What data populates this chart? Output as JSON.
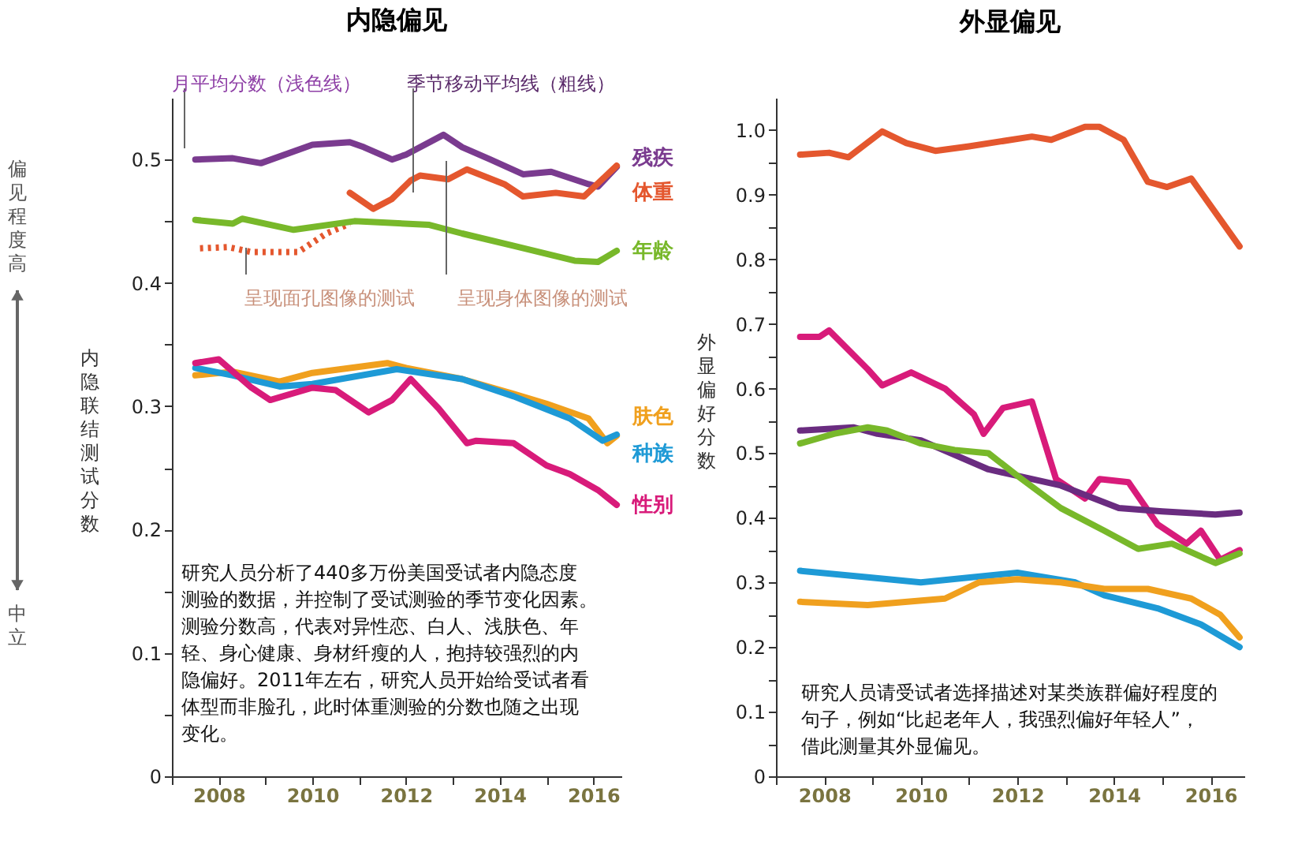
{
  "chart_data": [
    {
      "type": "line",
      "title": "内隐偏见",
      "ylabel": "内隐联结测试分数",
      "xlim": [
        2007,
        2016.6
      ],
      "ylim": [
        0,
        0.55
      ],
      "xticks": [
        {
          "value": 2007,
          "label": null
        },
        2008,
        {
          "value": 2009,
          "label": null
        },
        2010,
        {
          "value": 2011,
          "label": null
        },
        2012,
        {
          "value": 2013,
          "label": null
        },
        2014,
        {
          "value": 2015,
          "label": null
        },
        2016
      ],
      "yticks": [
        0,
        {
          "value": 0.05,
          "label": null
        },
        0.1,
        {
          "value": 0.15,
          "label": null
        },
        0.2,
        {
          "value": 0.25,
          "label": null
        },
        0.3,
        {
          "value": 0.35,
          "label": null
        },
        0.4,
        {
          "value": 0.45,
          "label": null
        },
        0.5
      ],
      "series": [
        {
          "name": "残疾",
          "color": "#7a3b8f",
          "x": [
            2007.5,
            2008.3,
            2008.9,
            2010.0,
            2010.8,
            2011.1,
            2011.7,
            2012.0,
            2012.8,
            2013.2,
            2013.8,
            2014.5,
            2015.1,
            2015.9,
            2016.1,
            2016.5
          ],
          "values": [
            0.5,
            0.501,
            0.497,
            0.512,
            0.514,
            0.51,
            0.5,
            0.504,
            0.52,
            0.51,
            0.5,
            0.488,
            0.49,
            0.48,
            0.478,
            0.494
          ]
        },
        {
          "name": "体重",
          "color": "#e4572e",
          "x": [
            2010.8,
            2011.3,
            2011.7,
            2012.1,
            2012.3,
            2012.9,
            2013.3,
            2014.1,
            2014.5,
            2015.2,
            2015.8,
            2016.5
          ],
          "values": [
            0.473,
            0.46,
            0.468,
            0.483,
            0.487,
            0.484,
            0.492,
            0.48,
            0.47,
            0.473,
            0.47,
            0.495
          ]
        },
        {
          "color": "#e4572e",
          "line_style": "dotted",
          "x": [
            2007.6,
            2008.2,
            2008.7,
            2009.7,
            2010.3,
            2010.8
          ],
          "values": [
            0.428,
            0.429,
            0.425,
            0.425,
            0.44,
            0.448
          ]
        },
        {
          "name": "年龄",
          "color": "#78b82a",
          "x": [
            2007.5,
            2008.3,
            2008.5,
            2009.6,
            2010.9,
            2012.5,
            2013.2,
            2014.3,
            2015.6,
            2016.1,
            2016.5
          ],
          "values": [
            0.451,
            0.448,
            0.452,
            0.443,
            0.45,
            0.447,
            0.44,
            0.43,
            0.418,
            0.417,
            0.426
          ]
        },
        {
          "name": "肤色",
          "color": "#f0a01e",
          "x": [
            2007.5,
            2008.3,
            2009.3,
            2010.0,
            2011.6,
            2012.0,
            2013.2,
            2014.3,
            2015.0,
            2015.9,
            2016.3,
            2016.5
          ],
          "values": [
            0.325,
            0.328,
            0.32,
            0.327,
            0.335,
            0.331,
            0.322,
            0.31,
            0.302,
            0.29,
            0.27,
            0.276
          ]
        },
        {
          "name": "种族",
          "color": "#1e9ad6",
          "x": [
            2007.5,
            2008.3,
            2009.3,
            2010.0,
            2011.8,
            2013.2,
            2014.3,
            2015.5,
            2016.2,
            2016.5
          ],
          "values": [
            0.331,
            0.325,
            0.316,
            0.318,
            0.33,
            0.322,
            0.308,
            0.29,
            0.272,
            0.277
          ]
        },
        {
          "name": "性别",
          "color": "#d81b7a",
          "x": [
            2007.5,
            2008.0,
            2008.7,
            2009.1,
            2010.0,
            2010.5,
            2011.2,
            2011.7,
            2012.1,
            2012.7,
            2013.3,
            2013.5,
            2014.3,
            2015.0,
            2015.5,
            2016.1,
            2016.5
          ],
          "values": [
            0.335,
            0.338,
            0.315,
            0.305,
            0.315,
            0.313,
            0.295,
            0.305,
            0.322,
            0.298,
            0.27,
            0.272,
            0.27,
            0.252,
            0.245,
            0.232,
            0.22
          ]
        }
      ],
      "annotations": [
        "月平均分数（浅色线）",
        "季节移动平均线（粗线）",
        "呈现面孔图像的测试",
        "呈现身体图像的测试",
        "研究人员分析了440多万份美国受试者内隐态度测验的数据，并控制了受试测验的季节变化因素。测验分数高，代表对异性恋、白人、浅肤色、年轻、身心健康、身材纤瘦的人，抱持较强烈的内隐偏好。2011年左右，研究人员开始给受试者看体型而非脸孔，此时体重测验的分数也随之出现变化。",
        "偏见程度高",
        "中立"
      ]
    },
    {
      "type": "line",
      "title": "外显偏见",
      "ylabel": "外显偏好分数",
      "xlim": [
        2007,
        2016.7
      ],
      "ylim": [
        0,
        1.05
      ],
      "xticks": [
        {
          "value": 2007,
          "label": null
        },
        2008,
        {
          "value": 2009,
          "label": null
        },
        2010,
        {
          "value": 2011,
          "label": null
        },
        2012,
        {
          "value": 2013,
          "label": null
        },
        2014,
        {
          "value": 2015,
          "label": null
        },
        2016
      ],
      "yticks": [
        0,
        {
          "value": 0.05,
          "label": null
        },
        0.1,
        {
          "value": 0.15,
          "label": null
        },
        0.2,
        {
          "value": 0.25,
          "label": null
        },
        0.3,
        {
          "value": 0.35,
          "label": null
        },
        0.4,
        {
          "value": 0.45,
          "label": null
        },
        0.5,
        {
          "value": 0.55,
          "label": null
        },
        0.6,
        {
          "value": 0.65,
          "label": null
        },
        0.7,
        {
          "value": 0.75,
          "label": null
        },
        0.8,
        {
          "value": 0.85,
          "label": null
        },
        0.9,
        {
          "value": 0.95,
          "label": null
        },
        {
          "value": 1,
          "label": "1.0"
        }
      ],
      "series": [
        {
          "color": "#e4572e",
          "x": [
            2007.5,
            2008.1,
            2008.5,
            2009.2,
            2009.7,
            2010.3,
            2011.0,
            2012.3,
            2012.7,
            2013.4,
            2013.7,
            2014.2,
            2014.7,
            2015.1,
            2015.6,
            2016.6
          ],
          "values": [
            0.962,
            0.965,
            0.958,
            0.998,
            0.98,
            0.968,
            0.975,
            0.99,
            0.985,
            1.005,
            1.005,
            0.985,
            0.92,
            0.912,
            0.925,
            0.82
          ]
        },
        {
          "color": "#d81b7a",
          "x": [
            2007.5,
            2007.9,
            2008.1,
            2008.9,
            2009.2,
            2009.8,
            2010.5,
            2011.1,
            2011.3,
            2011.7,
            2012.3,
            2012.8,
            2013.4,
            2013.7,
            2014.3,
            2014.9,
            2015.5,
            2015.8,
            2016.2,
            2016.6
          ],
          "values": [
            0.68,
            0.68,
            0.69,
            0.63,
            0.605,
            0.625,
            0.6,
            0.56,
            0.53,
            0.57,
            0.58,
            0.46,
            0.43,
            0.46,
            0.455,
            0.39,
            0.36,
            0.38,
            0.335,
            0.35
          ]
        },
        {
          "color": "#6a2c80",
          "x": [
            2007.5,
            2008.6,
            2009.1,
            2010.0,
            2011.4,
            2012.0,
            2012.9,
            2014.1,
            2015.0,
            2016.1,
            2016.6
          ],
          "values": [
            0.535,
            0.54,
            0.53,
            0.52,
            0.475,
            0.465,
            0.45,
            0.415,
            0.41,
            0.405,
            0.408
          ]
        },
        {
          "color": "#78b82a",
          "x": [
            2007.5,
            2008.2,
            2008.9,
            2009.3,
            2010.0,
            2010.7,
            2011.4,
            2012.0,
            2012.9,
            2013.8,
            2014.5,
            2015.2,
            2016.1,
            2016.6
          ],
          "values": [
            0.515,
            0.53,
            0.54,
            0.535,
            0.515,
            0.505,
            0.5,
            0.465,
            0.415,
            0.38,
            0.352,
            0.36,
            0.33,
            0.345
          ]
        },
        {
          "color": "#1e9ad6",
          "x": [
            2007.5,
            2008.9,
            2010.0,
            2012.0,
            2013.2,
            2013.8,
            2014.9,
            2015.8,
            2016.6
          ],
          "values": [
            0.318,
            0.308,
            0.3,
            0.315,
            0.3,
            0.28,
            0.26,
            0.235,
            0.2
          ]
        },
        {
          "color": "#f0a01e",
          "x": [
            2007.5,
            2008.9,
            2010.5,
            2011.2,
            2012.0,
            2012.9,
            2013.8,
            2014.7,
            2015.6,
            2016.2,
            2016.6
          ],
          "values": [
            0.27,
            0.265,
            0.275,
            0.3,
            0.305,
            0.3,
            0.29,
            0.29,
            0.275,
            0.25,
            0.215
          ]
        }
      ],
      "annotations": [
        "研究人员请受试者选择描述对某类族群偏好程度的句子，例如“比起老年人，我强烈偏好年轻人”，借此测量其外显偏见。"
      ]
    }
  ]
}
